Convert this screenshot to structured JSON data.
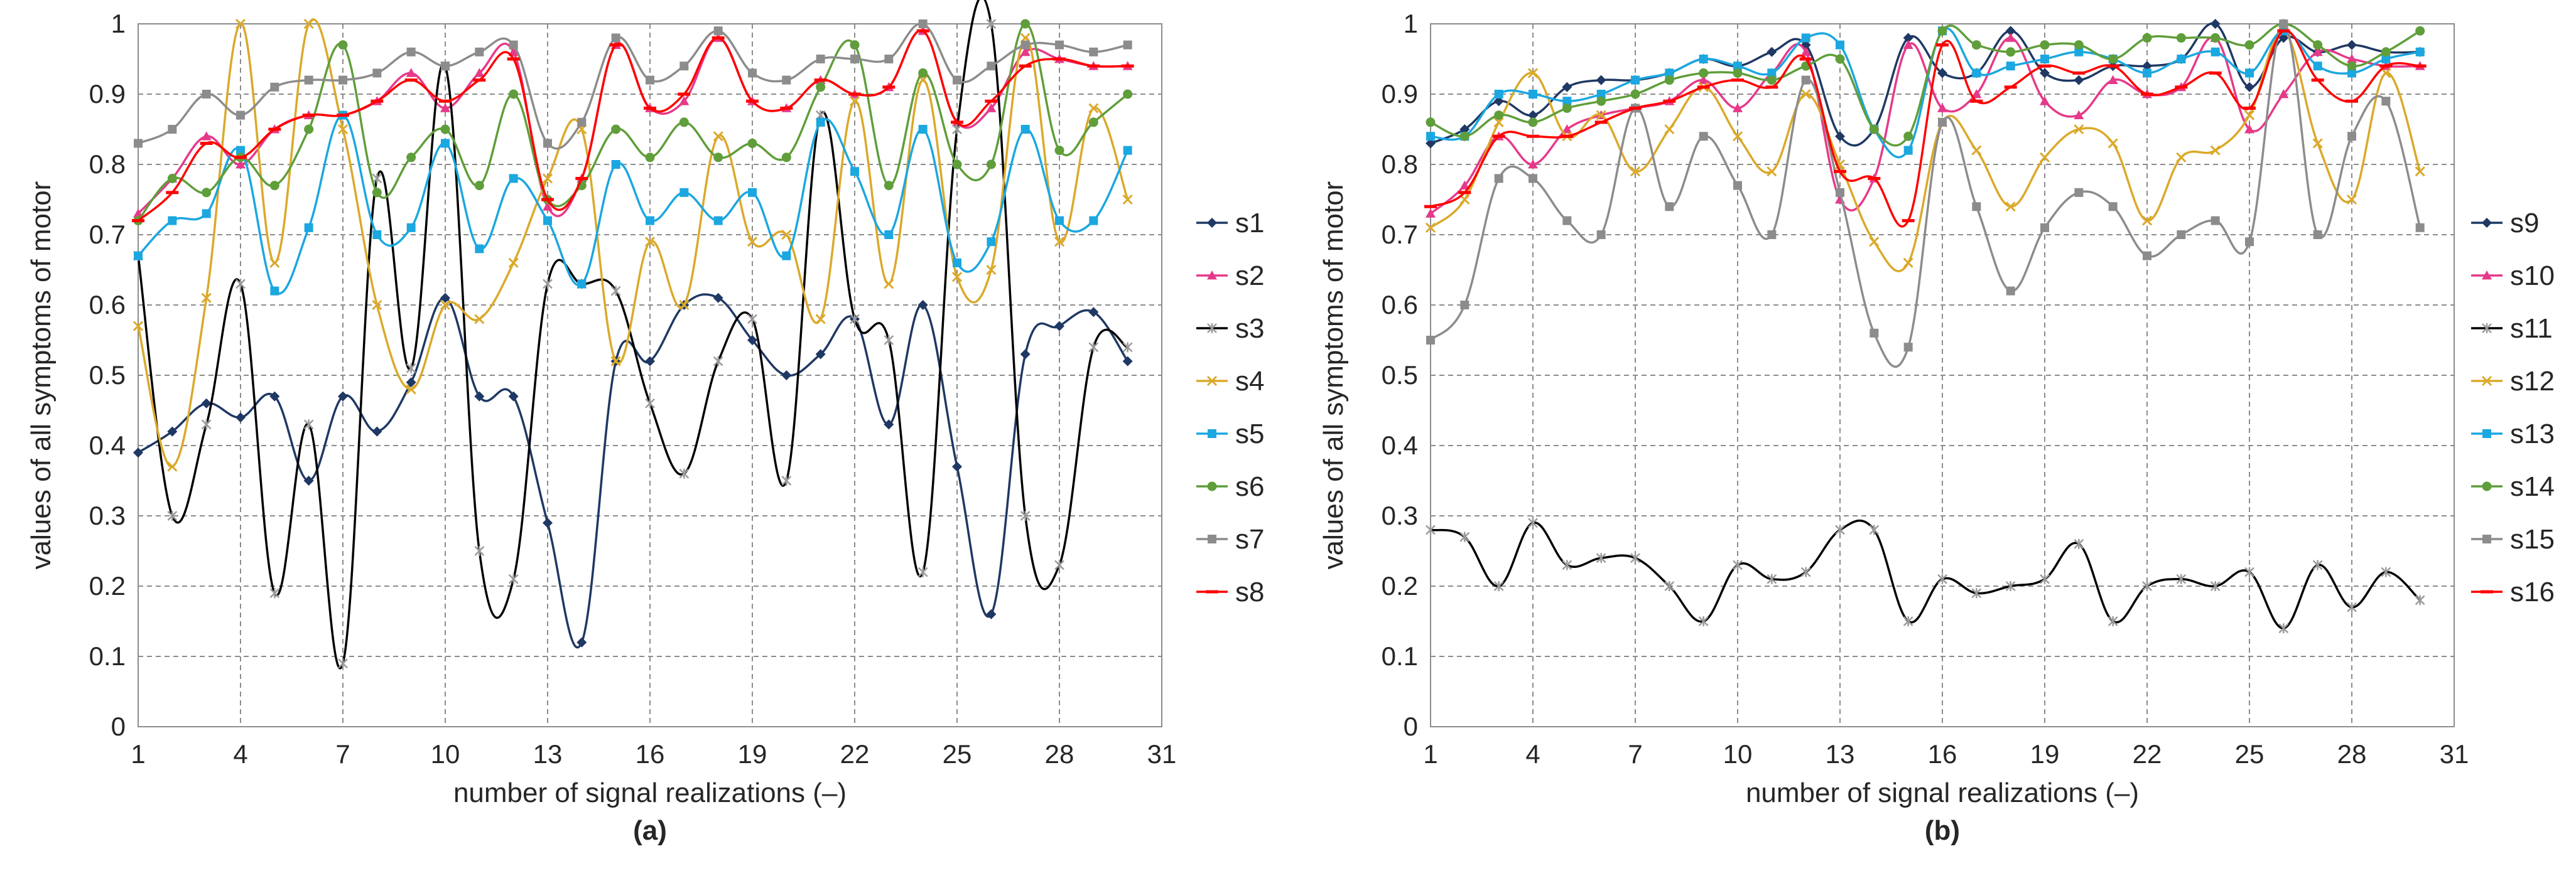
{
  "chart_data": [
    {
      "type": "line",
      "panel_label": "(a)",
      "xlabel": "number of signal realizations (–)",
      "ylabel": "values of all symptoms of motor",
      "xlim": [
        1,
        31
      ],
      "ylim": [
        0,
        1
      ],
      "x_ticks": [
        "1",
        "4",
        "7",
        "10",
        "13",
        "16",
        "19",
        "22",
        "25",
        "28",
        "31"
      ],
      "y_ticks": [
        "0",
        "0.1",
        "0.2",
        "0.3",
        "0.4",
        "0.5",
        "0.6",
        "0.7",
        "0.8",
        "0.9",
        "1"
      ],
      "grid": true,
      "legend_position": "right",
      "x": [
        1,
        2,
        3,
        4,
        5,
        6,
        7,
        8,
        9,
        10,
        11,
        12,
        13,
        14,
        15,
        16,
        17,
        18,
        19,
        20,
        21,
        22,
        23,
        24,
        25,
        26,
        27,
        28,
        29,
        30
      ],
      "series": [
        {
          "name": "s1",
          "color": "#1f3864",
          "marker": "diamond",
          "values": [
            0.39,
            0.42,
            0.46,
            0.44,
            0.47,
            0.35,
            0.47,
            0.42,
            0.49,
            0.61,
            0.47,
            0.47,
            0.29,
            0.12,
            0.52,
            0.52,
            0.6,
            0.61,
            0.55,
            0.5,
            0.53,
            0.58,
            0.43,
            0.6,
            0.37,
            0.16,
            0.53,
            0.57,
            0.59,
            0.52
          ]
        },
        {
          "name": "s2",
          "color": "#e6398a",
          "marker": "triangle",
          "values": [
            0.73,
            0.78,
            0.84,
            0.8,
            0.85,
            0.87,
            0.87,
            0.89,
            0.93,
            0.88,
            0.93,
            0.96,
            0.74,
            0.78,
            0.97,
            0.88,
            0.89,
            0.98,
            0.89,
            0.88,
            0.92,
            0.9,
            0.91,
            0.99,
            0.86,
            0.88,
            0.96,
            0.95,
            0.94,
            0.94
          ]
        },
        {
          "name": "s3",
          "color": "#000000",
          "marker": "star",
          "values": [
            0.67,
            0.3,
            0.43,
            0.63,
            0.19,
            0.43,
            0.09,
            0.78,
            0.51,
            0.94,
            0.25,
            0.21,
            0.63,
            0.63,
            0.62,
            0.46,
            0.36,
            0.52,
            0.58,
            0.35,
            0.87,
            0.58,
            0.55,
            0.22,
            0.85,
            1.0,
            0.3,
            0.23,
            0.54,
            0.54
          ]
        },
        {
          "name": "s4",
          "color": "#dba92a",
          "marker": "x",
          "values": [
            0.57,
            0.37,
            0.61,
            1.0,
            0.66,
            1.0,
            0.85,
            0.6,
            0.48,
            0.6,
            0.58,
            0.66,
            0.78,
            0.85,
            0.52,
            0.69,
            0.6,
            0.84,
            0.69,
            0.7,
            0.58,
            0.89,
            0.63,
            0.92,
            0.64,
            0.65,
            0.98,
            0.69,
            0.88,
            0.75
          ]
        },
        {
          "name": "s5",
          "color": "#1ba7e0",
          "marker": "square",
          "values": [
            0.67,
            0.72,
            0.73,
            0.82,
            0.62,
            0.71,
            0.87,
            0.7,
            0.71,
            0.83,
            0.68,
            0.78,
            0.72,
            0.63,
            0.8,
            0.72,
            0.76,
            0.72,
            0.76,
            0.67,
            0.86,
            0.79,
            0.7,
            0.85,
            0.66,
            0.69,
            0.85,
            0.72,
            0.72,
            0.82
          ]
        },
        {
          "name": "s6",
          "color": "#5f9e3a",
          "marker": "circle",
          "values": [
            0.72,
            0.78,
            0.76,
            0.81,
            0.77,
            0.85,
            0.97,
            0.76,
            0.81,
            0.85,
            0.77,
            0.9,
            0.75,
            0.77,
            0.85,
            0.81,
            0.86,
            0.81,
            0.83,
            0.81,
            0.91,
            0.97,
            0.77,
            0.93,
            0.8,
            0.8,
            1.0,
            0.82,
            0.86,
            0.9
          ]
        },
        {
          "name": "s7",
          "color": "#8c8c8c",
          "marker": "square",
          "values": [
            0.83,
            0.85,
            0.9,
            0.87,
            0.91,
            0.92,
            0.92,
            0.93,
            0.96,
            0.94,
            0.96,
            0.97,
            0.83,
            0.86,
            0.98,
            0.92,
            0.94,
            0.99,
            0.93,
            0.92,
            0.95,
            0.95,
            0.95,
            1.0,
            0.92,
            0.94,
            0.97,
            0.97,
            0.96,
            0.97
          ]
        },
        {
          "name": "s8",
          "color": "#ff0000",
          "marker": "dash",
          "values": [
            0.72,
            0.76,
            0.83,
            0.81,
            0.85,
            0.87,
            0.87,
            0.89,
            0.92,
            0.89,
            0.92,
            0.95,
            0.75,
            0.78,
            0.97,
            0.88,
            0.9,
            0.98,
            0.89,
            0.88,
            0.92,
            0.9,
            0.91,
            0.99,
            0.86,
            0.89,
            0.94,
            0.95,
            0.94,
            0.94
          ]
        }
      ]
    },
    {
      "type": "line",
      "panel_label": "(b)",
      "xlabel": "number of signal realizations (–)",
      "ylabel": "values of all symptoms of motor",
      "xlim": [
        1,
        31
      ],
      "ylim": [
        0,
        1
      ],
      "x_ticks": [
        "1",
        "4",
        "7",
        "10",
        "13",
        "16",
        "19",
        "22",
        "25",
        "28",
        "31"
      ],
      "y_ticks": [
        "0",
        "0.1",
        "0.2",
        "0.3",
        "0.4",
        "0.5",
        "0.6",
        "0.7",
        "0.8",
        "0.9",
        "1"
      ],
      "grid": true,
      "legend_position": "right",
      "x": [
        1,
        2,
        3,
        4,
        5,
        6,
        7,
        8,
        9,
        10,
        11,
        12,
        13,
        14,
        15,
        16,
        17,
        18,
        19,
        20,
        21,
        22,
        23,
        24,
        25,
        26,
        27,
        28,
        29,
        30
      ],
      "series": [
        {
          "name": "s9",
          "color": "#1f3864",
          "marker": "diamond",
          "values": [
            0.83,
            0.85,
            0.89,
            0.87,
            0.91,
            0.92,
            0.92,
            0.93,
            0.95,
            0.94,
            0.96,
            0.97,
            0.84,
            0.85,
            0.98,
            0.93,
            0.93,
            0.99,
            0.93,
            0.92,
            0.94,
            0.94,
            0.95,
            1.0,
            0.91,
            0.98,
            0.96,
            0.97,
            0.96,
            0.96
          ]
        },
        {
          "name": "s10",
          "color": "#e6398a",
          "marker": "triangle",
          "values": [
            0.73,
            0.77,
            0.84,
            0.8,
            0.85,
            0.87,
            0.88,
            0.89,
            0.92,
            0.88,
            0.93,
            0.96,
            0.75,
            0.78,
            0.97,
            0.88,
            0.9,
            0.98,
            0.89,
            0.87,
            0.92,
            0.9,
            0.91,
            0.98,
            0.85,
            0.9,
            0.96,
            0.95,
            0.94,
            0.94
          ]
        },
        {
          "name": "s11",
          "color": "#000000",
          "marker": "star",
          "values": [
            0.28,
            0.27,
            0.2,
            0.29,
            0.23,
            0.24,
            0.24,
            0.2,
            0.15,
            0.23,
            0.21,
            0.22,
            0.28,
            0.28,
            0.15,
            0.21,
            0.19,
            0.2,
            0.21,
            0.26,
            0.15,
            0.2,
            0.21,
            0.2,
            0.22,
            0.14,
            0.23,
            0.17,
            0.22,
            0.18
          ]
        },
        {
          "name": "s12",
          "color": "#dba92a",
          "marker": "x",
          "values": [
            0.71,
            0.75,
            0.86,
            0.93,
            0.84,
            0.87,
            0.79,
            0.85,
            0.91,
            0.84,
            0.79,
            0.9,
            0.8,
            0.69,
            0.66,
            0.86,
            0.82,
            0.74,
            0.81,
            0.85,
            0.83,
            0.72,
            0.81,
            0.82,
            0.87,
            0.99,
            0.83,
            0.75,
            0.93,
            0.79
          ]
        },
        {
          "name": "s13",
          "color": "#1ba7e0",
          "marker": "square",
          "values": [
            0.84,
            0.84,
            0.9,
            0.9,
            0.89,
            0.9,
            0.92,
            0.93,
            0.95,
            0.94,
            0.93,
            0.98,
            0.97,
            0.85,
            0.82,
            0.99,
            0.93,
            0.94,
            0.95,
            0.96,
            0.95,
            0.93,
            0.95,
            0.96,
            0.93,
            0.99,
            0.94,
            0.93,
            0.95,
            0.96
          ]
        },
        {
          "name": "s14",
          "color": "#5f9e3a",
          "marker": "circle",
          "values": [
            0.86,
            0.84,
            0.87,
            0.86,
            0.88,
            0.89,
            0.9,
            0.92,
            0.93,
            0.93,
            0.92,
            0.94,
            0.95,
            0.85,
            0.84,
            0.99,
            0.97,
            0.96,
            0.97,
            0.97,
            0.95,
            0.98,
            0.98,
            0.98,
            0.97,
            1.0,
            0.97,
            0.94,
            0.96,
            0.99
          ]
        },
        {
          "name": "s15",
          "color": "#8c8c8c",
          "marker": "square",
          "values": [
            0.55,
            0.6,
            0.78,
            0.78,
            0.72,
            0.7,
            0.88,
            0.74,
            0.84,
            0.77,
            0.7,
            0.92,
            0.76,
            0.56,
            0.54,
            0.86,
            0.74,
            0.62,
            0.71,
            0.76,
            0.74,
            0.67,
            0.7,
            0.72,
            0.69,
            1.0,
            0.7,
            0.84,
            0.89,
            0.71
          ]
        },
        {
          "name": "s16",
          "color": "#ff0000",
          "marker": "dash",
          "values": [
            0.74,
            0.76,
            0.84,
            0.84,
            0.84,
            0.86,
            0.88,
            0.89,
            0.91,
            0.92,
            0.91,
            0.95,
            0.79,
            0.78,
            0.72,
            0.97,
            0.89,
            0.91,
            0.94,
            0.93,
            0.94,
            0.9,
            0.91,
            0.93,
            0.88,
            0.99,
            0.92,
            0.89,
            0.94,
            0.94
          ]
        }
      ]
    }
  ]
}
